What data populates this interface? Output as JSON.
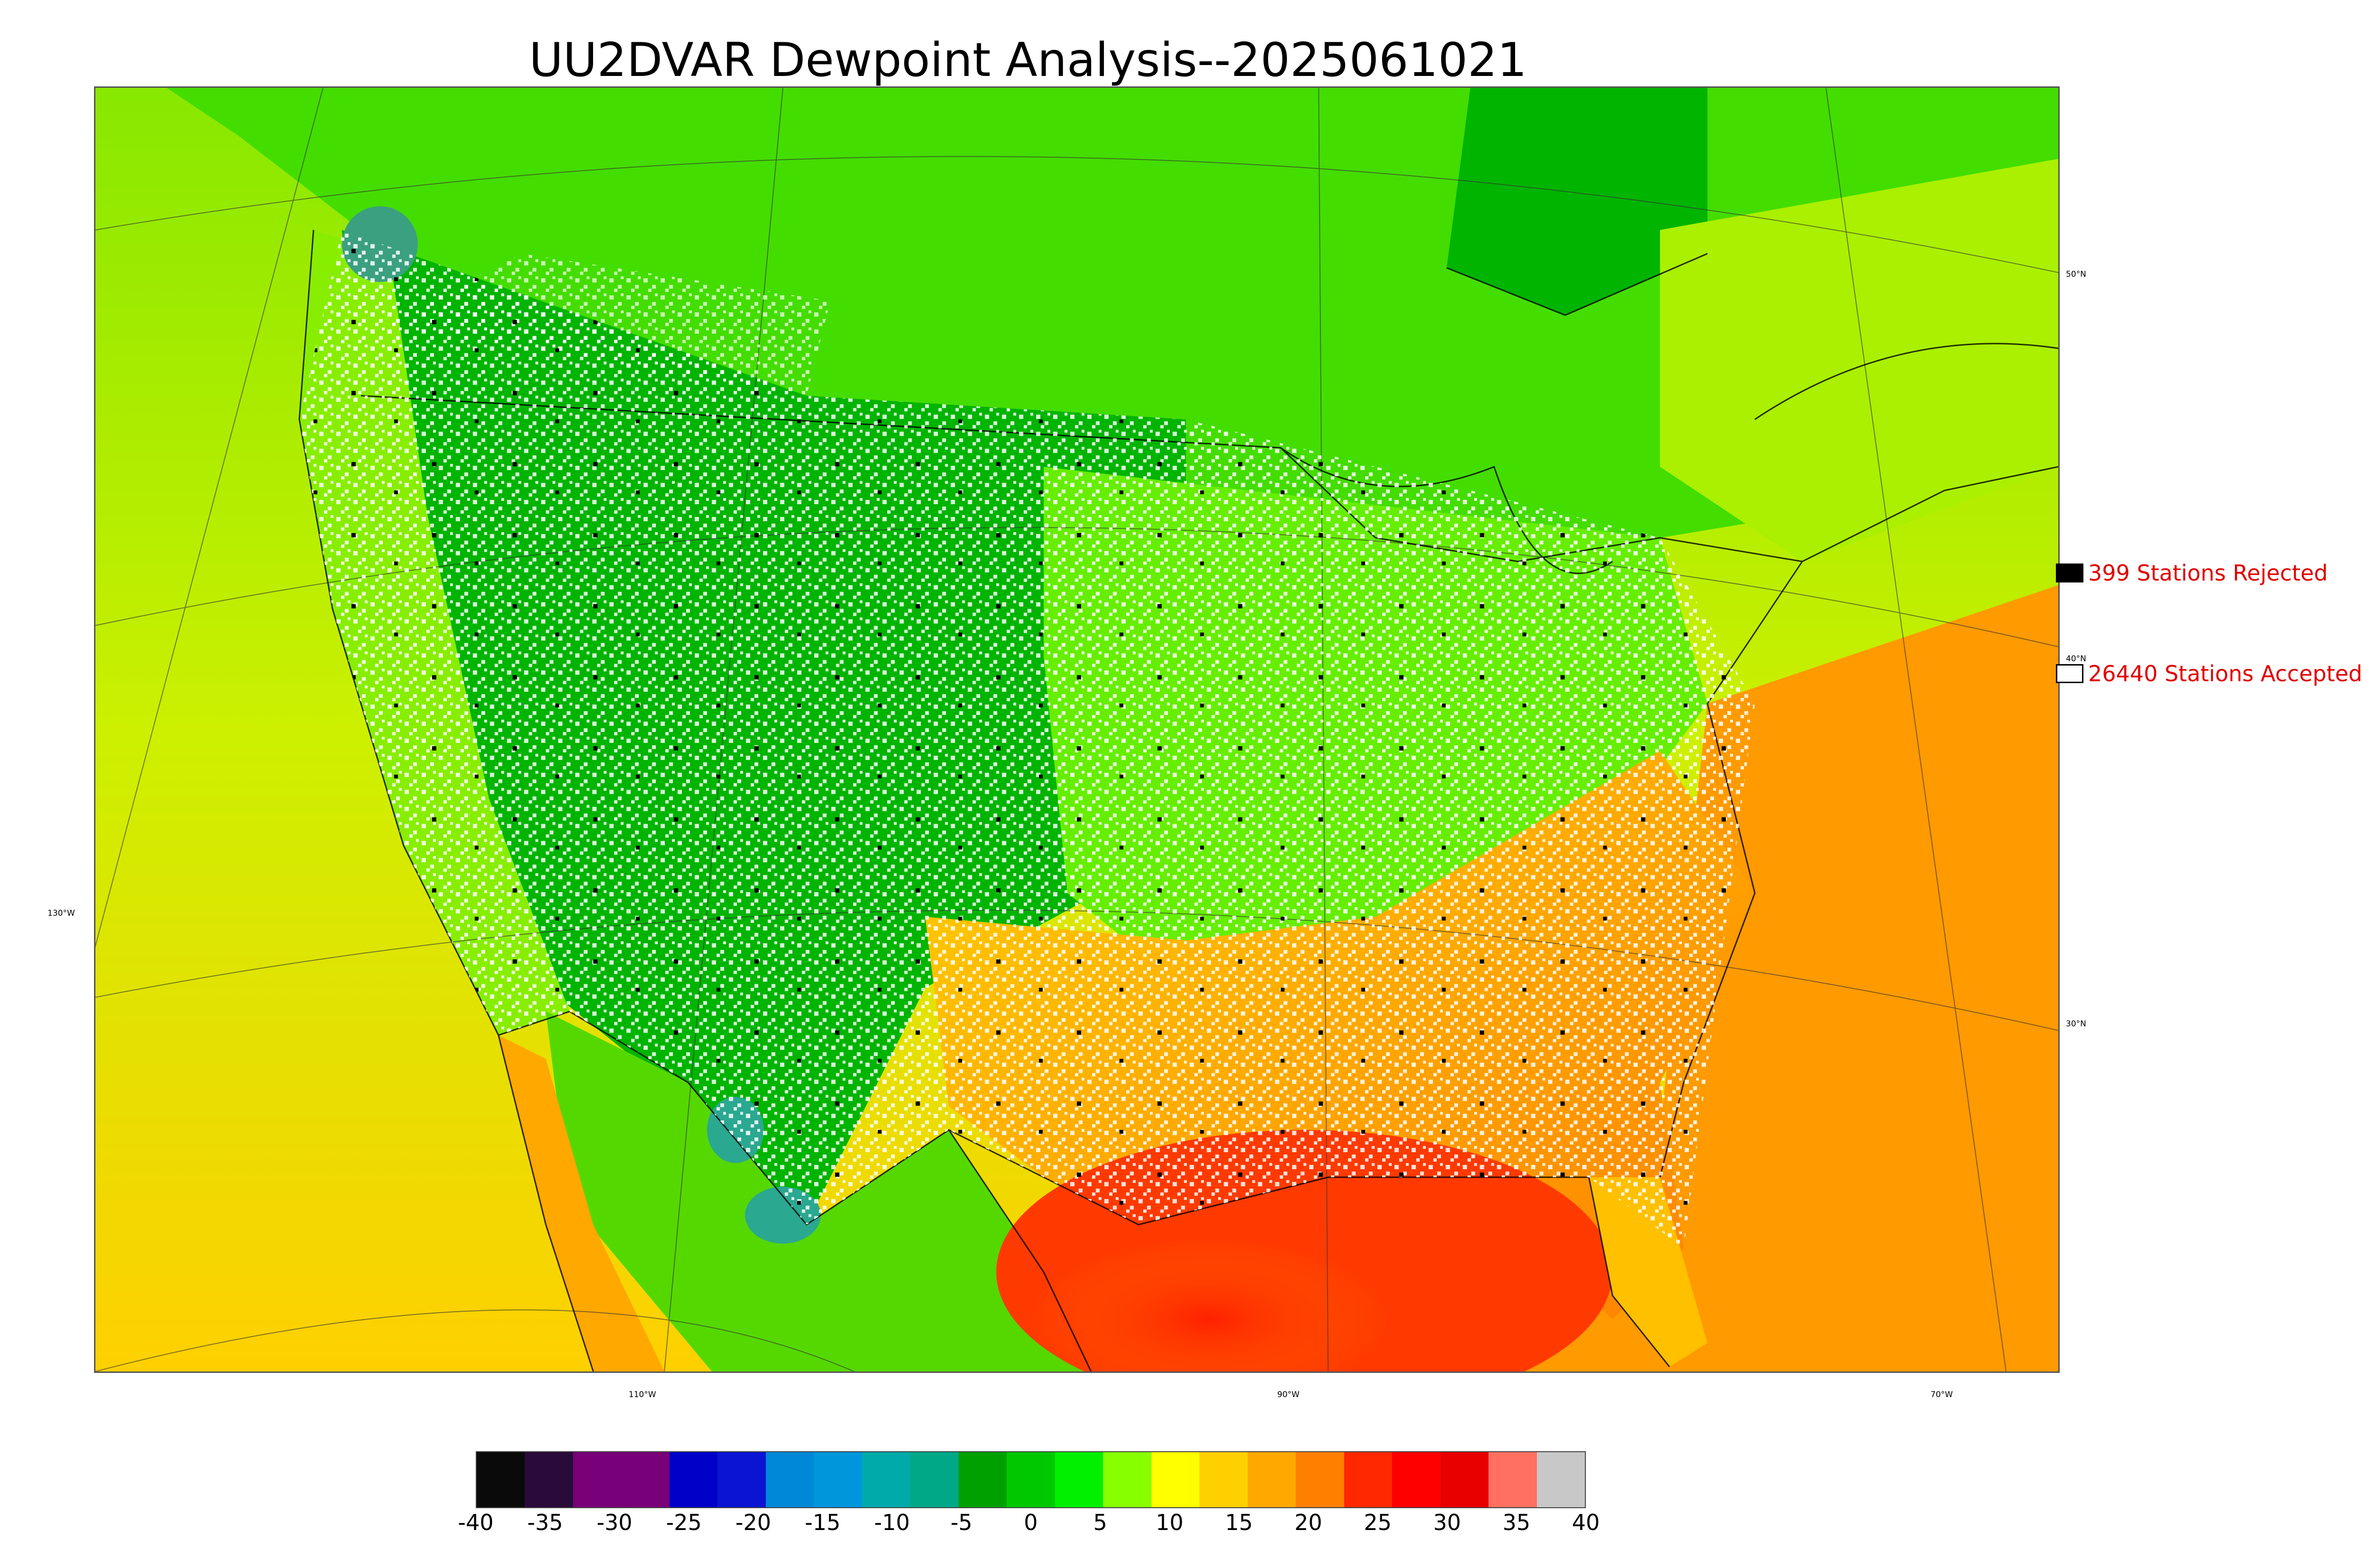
{
  "title": "UU2DVAR Dewpoint Analysis--2025061021",
  "map": {
    "latitude_labels": [
      "50°N",
      "40°N",
      "30°N"
    ],
    "longitude_labels": [
      "130°W",
      "110°W",
      "90°W",
      "70°W"
    ],
    "colors": {
      "ocean_west": "#ccf000",
      "ocean_gulf": "#ff3a00",
      "ocean_atlantic": "#ff9a00",
      "land_dry": "#00b000",
      "land_moist": "#66ee00",
      "southeast": "#ffb000",
      "canada": "#44dd00",
      "coast_line": "#000000",
      "station_accepted": "#ffffff",
      "station_rejected": "#000000"
    }
  },
  "legend": {
    "rejected_label": "399 Stations Rejected",
    "accepted_label": "26440 Stations Accepted",
    "rejected_color": "#000000",
    "accepted_color": "#ffffff"
  },
  "colorbar": {
    "ticks": [
      "-40",
      "-35",
      "-30",
      "-25",
      "-20",
      "-15",
      "-10",
      "-5",
      "0",
      "5",
      "10",
      "15",
      "20",
      "25",
      "30",
      "35",
      "40"
    ],
    "colors": [
      "#0a0a0a",
      "#2a0a3a",
      "#780078",
      "#780078",
      "#0000c8",
      "#0a14d2",
      "#0088d8",
      "#0096dc",
      "#00aaaa",
      "#00a888",
      "#00a000",
      "#00c800",
      "#00f000",
      "#88ff00",
      "#ffff00",
      "#ffd000",
      "#ffa800",
      "#ff8000",
      "#ff2800",
      "#ff0000",
      "#e80000",
      "#ff7060",
      "#c8c8c8"
    ]
  }
}
